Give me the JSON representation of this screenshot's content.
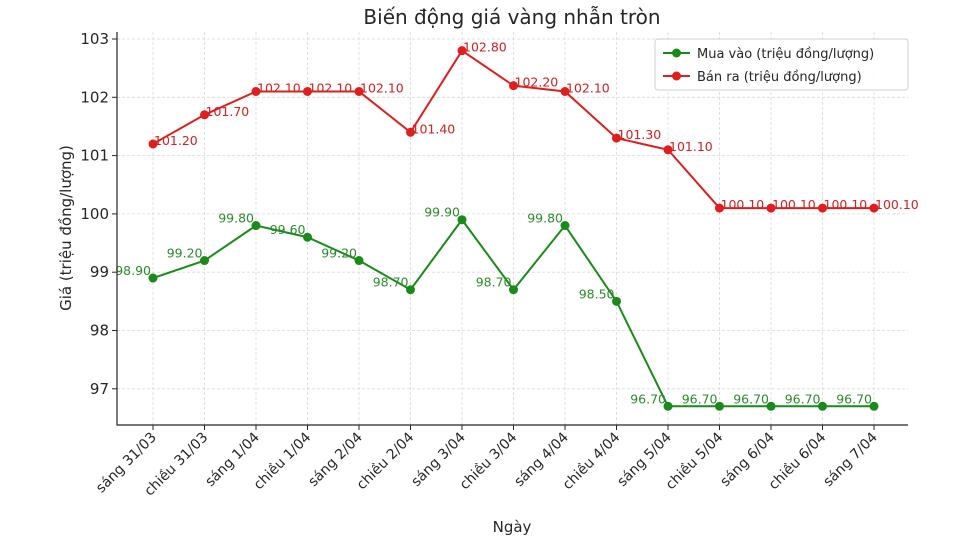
{
  "chart_data": {
    "type": "line",
    "title": "Biến động giá vàng nhẫn tròn",
    "xlabel": "Ngày",
    "ylabel": "Giá (triệu đồng/lượng)",
    "categories": [
      "sáng 31/03",
      "chiều 31/03",
      "sáng 1/04",
      "chiều 1/04",
      "sáng 2/04",
      "chiều 2/04",
      "sáng 3/04",
      "chiều 3/04",
      "sáng 4/04",
      "chiều 4/04",
      "sáng 5/04",
      "chiều 5/04",
      "sáng 6/04",
      "chiều 6/04",
      "sáng 7/04"
    ],
    "series": [
      {
        "name": "Mua vào (triệu đồng/lượng)",
        "color": "#1a8a1a",
        "values": [
          98.9,
          99.2,
          99.8,
          99.6,
          99.2,
          98.7,
          99.9,
          98.7,
          99.8,
          98.5,
          96.7,
          96.7,
          96.7,
          96.7,
          96.7
        ],
        "labels": [
          "98.90",
          "99.20",
          "99.80",
          "99.60",
          "99.20",
          "98.70",
          "99.90",
          "98.70",
          "99.80",
          "98.50",
          "96.70",
          "96.70",
          "96.70",
          "96.70",
          "96.70"
        ]
      },
      {
        "name": "Bán ra (triệu đồng/lượng)",
        "color": "#e01e1e",
        "values": [
          101.2,
          101.7,
          102.1,
          102.1,
          102.1,
          101.4,
          102.8,
          102.2,
          102.1,
          101.3,
          101.1,
          100.1,
          100.1,
          100.1,
          100.1
        ],
        "labels": [
          "101.20",
          "101.70",
          "102.10",
          "102.10",
          "102.10",
          "101.40",
          "102.80",
          "102.20",
          "102.10",
          "101.30",
          "101.10",
          "100.10",
          "100.10",
          "100.10",
          "100.10"
        ]
      }
    ],
    "yticks": [
      97,
      98,
      99,
      100,
      101,
      102,
      103
    ],
    "ylim": [
      96.4,
      103.1
    ],
    "grid": true,
    "legend_position": "upper right"
  }
}
